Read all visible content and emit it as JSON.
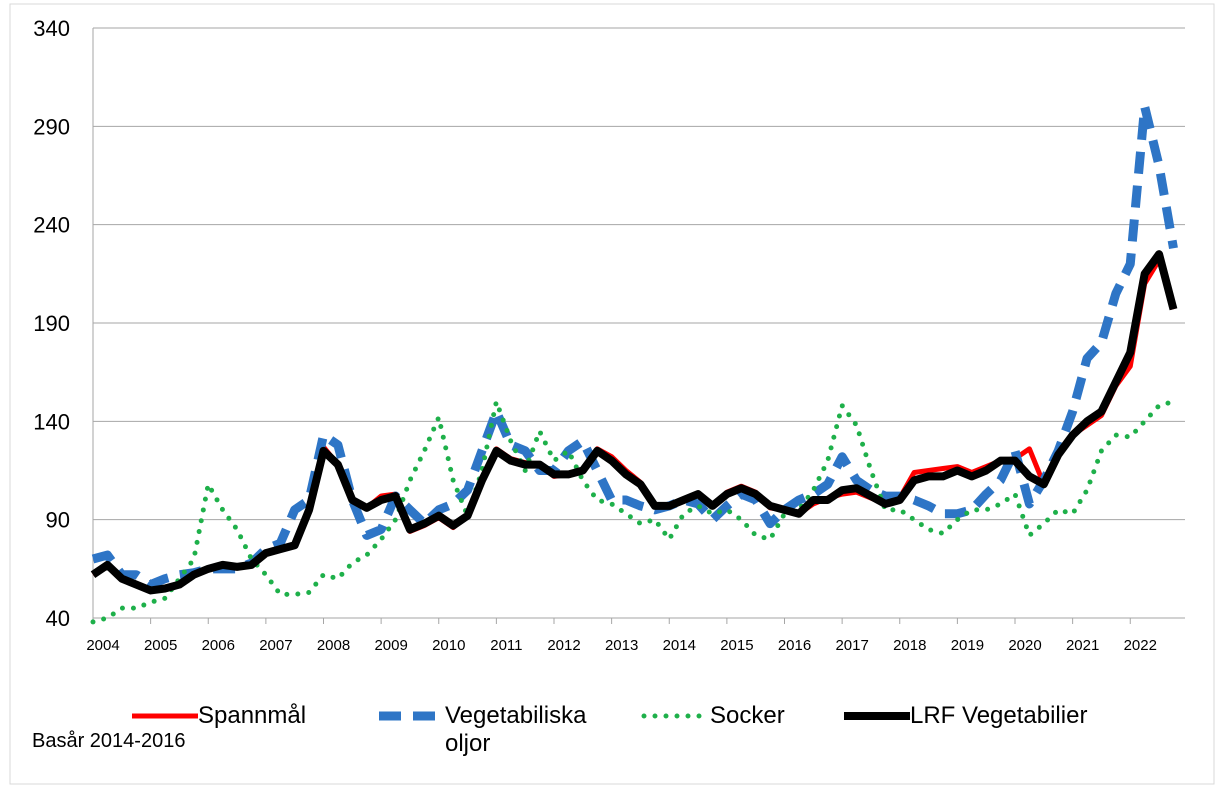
{
  "chart_data": {
    "type": "line",
    "x": [
      2004,
      2004.25,
      2004.5,
      2004.75,
      2005,
      2005.25,
      2005.5,
      2005.75,
      2006,
      2006.25,
      2006.5,
      2006.75,
      2007,
      2007.25,
      2007.5,
      2007.75,
      2008,
      2008.25,
      2008.5,
      2008.75,
      2009,
      2009.25,
      2009.5,
      2009.75,
      2010,
      2010.25,
      2010.5,
      2010.75,
      2011,
      2011.25,
      2011.5,
      2011.75,
      2012,
      2012.25,
      2012.5,
      2012.75,
      2013,
      2013.25,
      2013.5,
      2013.75,
      2014,
      2014.25,
      2014.5,
      2014.75,
      2015,
      2015.25,
      2015.5,
      2015.75,
      2016,
      2016.25,
      2016.5,
      2016.75,
      2017,
      2017.25,
      2017.5,
      2017.75,
      2018,
      2018.25,
      2018.5,
      2018.75,
      2019,
      2019.25,
      2019.5,
      2019.75,
      2020,
      2020.25,
      2020.5,
      2020.75,
      2021,
      2021.25,
      2021.5,
      2021.75,
      2022,
      2022.25,
      2022.5,
      2022.75
    ],
    "xlim": [
      2004,
      2022.95
    ],
    "xticks": [
      2004,
      2005,
      2006,
      2007,
      2008,
      2009,
      2010,
      2011,
      2012,
      2013,
      2014,
      2015,
      2016,
      2017,
      2018,
      2019,
      2020,
      2021,
      2022
    ],
    "ylim": [
      40,
      340
    ],
    "yticks": [
      40,
      90,
      140,
      190,
      240,
      290,
      340
    ],
    "grid": true,
    "legend": "bottom",
    "note": "Basår 2014-2016",
    "series": [
      {
        "name": "Spannmål",
        "color": "#ff0000",
        "style": "solid",
        "values": [
          62,
          67,
          60,
          57,
          54,
          55,
          57,
          62,
          65,
          67,
          66,
          67,
          73,
          75,
          77,
          95,
          127,
          118,
          100,
          96,
          102,
          103,
          84,
          87,
          91,
          86,
          92,
          110,
          126,
          121,
          119,
          118,
          112,
          113,
          115,
          126,
          122,
          115,
          109,
          97,
          97,
          100,
          103,
          97,
          104,
          107,
          104,
          96,
          95,
          93,
          98,
          101,
          103,
          104,
          101,
          98,
          101,
          114,
          115,
          116,
          117,
          114,
          117,
          120,
          121,
          126,
          108,
          123,
          133,
          138,
          143,
          158,
          168,
          210,
          222,
          197
        ]
      },
      {
        "name": "Vegetabiliska oljor",
        "color": "#2e75c6",
        "style": "dashed",
        "values": [
          70,
          72,
          62,
          62,
          57,
          60,
          62,
          63,
          65,
          65,
          65,
          68,
          75,
          78,
          95,
          100,
          133,
          128,
          100,
          82,
          85,
          102,
          95,
          88,
          95,
          98,
          105,
          125,
          145,
          128,
          125,
          115,
          115,
          125,
          130,
          115,
          100,
          100,
          97,
          95,
          97,
          100,
          98,
          90,
          97,
          103,
          100,
          88,
          95,
          100,
          103,
          108,
          122,
          110,
          105,
          102,
          102,
          100,
          97,
          93,
          93,
          95,
          103,
          110,
          125,
          98,
          110,
          125,
          145,
          172,
          180,
          205,
          220,
          300,
          270,
          228
        ]
      },
      {
        "name": "Socker",
        "color": "#1eb04a",
        "style": "dotted",
        "values": [
          38,
          40,
          45,
          45,
          48,
          50,
          60,
          70,
          108,
          95,
          85,
          70,
          62,
          52,
          52,
          53,
          62,
          60,
          68,
          72,
          80,
          90,
          110,
          125,
          142,
          110,
          92,
          115,
          150,
          130,
          115,
          135,
          120,
          125,
          110,
          100,
          98,
          93,
          88,
          90,
          80,
          93,
          97,
          93,
          95,
          90,
          82,
          80,
          93,
          95,
          105,
          120,
          148,
          138,
          115,
          95,
          95,
          90,
          85,
          83,
          90,
          95,
          95,
          98,
          103,
          82,
          88,
          95,
          93,
          105,
          125,
          133,
          132,
          140,
          148,
          150
        ]
      },
      {
        "name": "LRF Vegetabilier",
        "color": "#000000",
        "style": "solid",
        "values": [
          62,
          67,
          60,
          57,
          54,
          55,
          57,
          62,
          65,
          67,
          66,
          67,
          73,
          75,
          77,
          95,
          125,
          118,
          100,
          96,
          100,
          102,
          85,
          88,
          92,
          87,
          92,
          110,
          125,
          120,
          118,
          118,
          113,
          113,
          115,
          125,
          120,
          113,
          108,
          97,
          97,
          100,
          103,
          97,
          103,
          106,
          103,
          97,
          95,
          93,
          100,
          100,
          105,
          106,
          102,
          98,
          100,
          110,
          112,
          112,
          115,
          112,
          115,
          120,
          120,
          112,
          108,
          123,
          133,
          140,
          145,
          160,
          175,
          215,
          225,
          197
        ]
      }
    ]
  }
}
